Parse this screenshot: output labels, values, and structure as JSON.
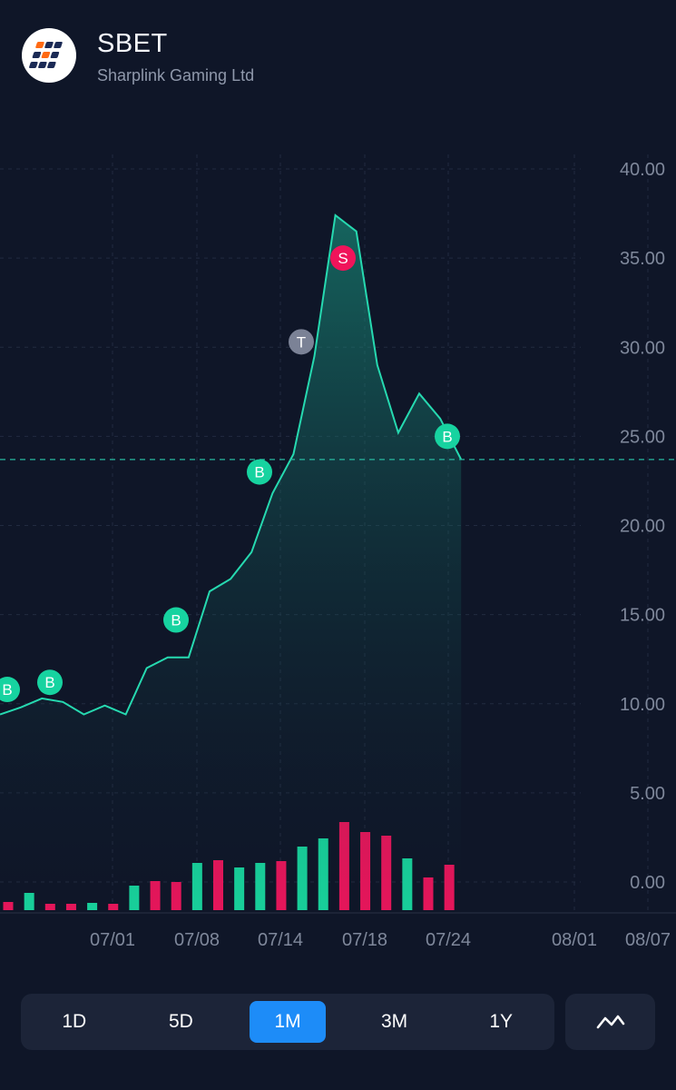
{
  "header": {
    "ticker": "SBET",
    "company_name": "Sharplink Gaming Ltd"
  },
  "colors": {
    "background": "#0f1628",
    "line": "#26d9b0",
    "buy_marker": "#17d3a0",
    "sell_marker": "#f0145a",
    "trade_marker": "#7b8296",
    "volume_up": "#19d9a0",
    "volume_down": "#f0165d",
    "active_range": "#1d8cf8"
  },
  "range_selector": {
    "options": [
      "1D",
      "5D",
      "1M",
      "3M",
      "1Y"
    ],
    "selected": "1M"
  },
  "chart_type_icon": "line-chart-icon",
  "chart_data": {
    "type": "area",
    "ylim": [
      -1.6,
      40.0
    ],
    "y_ticks": [
      "40.00",
      "35.00",
      "30.00",
      "25.00",
      "20.00",
      "15.00",
      "10.00",
      "5.00",
      "0.00"
    ],
    "x_ticks": [
      "07/01",
      "07/08",
      "07/14",
      "07/18",
      "07/24",
      "08/01",
      "08/07"
    ],
    "current_price_line": 23.7,
    "price_series": [
      9.4,
      9.8,
      10.3,
      10.1,
      9.4,
      9.9,
      9.4,
      12.0,
      12.6,
      12.6,
      16.3,
      17.0,
      18.5,
      21.8,
      24.0,
      29.5,
      37.4,
      36.5,
      29.0,
      25.2,
      27.4,
      26.0,
      23.7
    ],
    "volume_series": [
      {
        "value": 0.45,
        "dir": "down"
      },
      {
        "value": 0.95,
        "dir": "up"
      },
      {
        "value": 0.35,
        "dir": "down"
      },
      {
        "value": 0.35,
        "dir": "down"
      },
      {
        "value": 0.4,
        "dir": "up"
      },
      {
        "value": 0.35,
        "dir": "down"
      },
      {
        "value": 1.35,
        "dir": "up"
      },
      {
        "value": 1.6,
        "dir": "down"
      },
      {
        "value": 1.55,
        "dir": "down"
      },
      {
        "value": 2.6,
        "dir": "up"
      },
      {
        "value": 2.75,
        "dir": "down"
      },
      {
        "value": 2.35,
        "dir": "up"
      },
      {
        "value": 2.6,
        "dir": "up"
      },
      {
        "value": 2.7,
        "dir": "down"
      },
      {
        "value": 3.5,
        "dir": "up"
      },
      {
        "value": 3.95,
        "dir": "up"
      },
      {
        "value": 4.85,
        "dir": "down"
      },
      {
        "value": 4.3,
        "dir": "down"
      },
      {
        "value": 4.1,
        "dir": "down"
      },
      {
        "value": 2.85,
        "dir": "up"
      },
      {
        "value": 1.8,
        "dir": "down"
      },
      {
        "value": 2.5,
        "dir": "down"
      }
    ],
    "trade_markers": [
      {
        "label": "B",
        "type": "buy",
        "price": 10.8
      },
      {
        "label": "B",
        "type": "buy",
        "price": 11.2
      },
      {
        "label": "B",
        "type": "buy",
        "price": 14.7
      },
      {
        "label": "B",
        "type": "buy",
        "price": 23.0
      },
      {
        "label": "T",
        "type": "trade",
        "price": 30.3
      },
      {
        "label": "S",
        "type": "sell",
        "price": 35.0
      },
      {
        "label": "B",
        "type": "buy",
        "price": 25.0
      }
    ]
  }
}
